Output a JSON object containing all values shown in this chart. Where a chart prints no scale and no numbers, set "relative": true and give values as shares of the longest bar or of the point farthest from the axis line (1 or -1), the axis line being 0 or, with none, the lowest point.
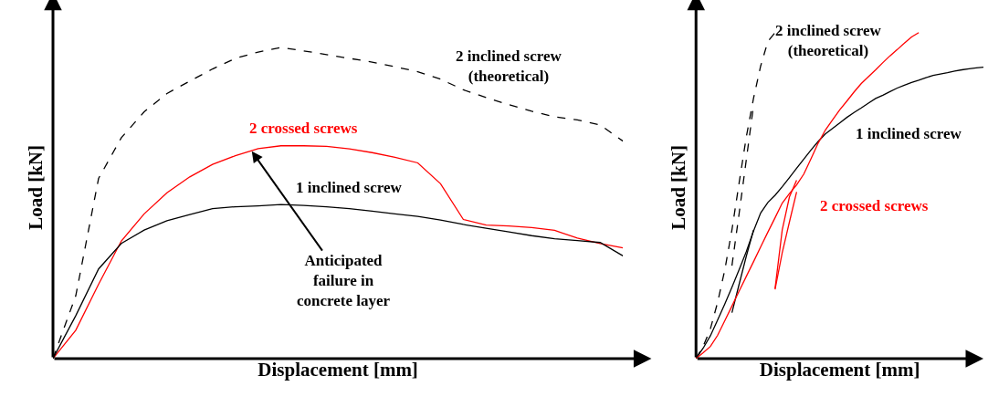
{
  "chart_data": [
    {
      "type": "line",
      "relative": true,
      "xlabel": "Displacement [mm]",
      "ylabel": "Load [kN]",
      "categories": [
        null,
        null,
        null,
        null,
        null,
        null,
        null,
        null,
        null,
        null,
        null,
        null,
        null,
        null,
        null,
        null,
        null,
        null,
        null,
        null,
        null,
        null,
        null,
        null,
        null,
        null
      ],
      "series": [
        {
          "name": "2 inclined screw\n(theoretical)",
          "color": "#000000",
          "line_style": "dashed",
          "values": [
            0,
            0.202,
            0.579,
            0.71,
            0.793,
            0.852,
            0.892,
            0.931,
            0.965,
            0.985,
            1.0,
            0.989,
            0.977,
            0.965,
            0.953,
            0.938,
            0.922,
            0.898,
            0.864,
            0.839,
            0.816,
            0.795,
            0.777,
            0.767,
            0.751,
            0.699
          ]
        },
        {
          "name": "2 crossed screws",
          "color": "#ff0000",
          "values": [
            0,
            0.091,
            0.239,
            0.378,
            0.465,
            0.533,
            0.584,
            0.624,
            0.652,
            0.675,
            0.684,
            0.684,
            0.682,
            0.674,
            0.662,
            0.647,
            0.629,
            0.562,
            0.447,
            0.429,
            0.426,
            0.421,
            0.412,
            0.387,
            0.37,
            0.356
          ]
        },
        {
          "name": "1 inclined screw",
          "color": "#000000",
          "values": [
            0,
            0.138,
            0.288,
            0.37,
            0.413,
            0.443,
            0.463,
            0.482,
            0.488,
            0.491,
            0.495,
            0.492,
            0.488,
            0.482,
            0.474,
            0.465,
            0.457,
            0.445,
            0.431,
            0.419,
            0.407,
            0.395,
            0.385,
            0.379,
            0.373,
            0.33
          ]
        }
      ],
      "annotations": [
        "Anticipated\nfailure in\nconcrete layer"
      ]
    },
    {
      "type": "line",
      "relative": true,
      "xlabel": "Displacement [mm]",
      "ylabel": "Load [kN]",
      "categories": [
        null,
        null,
        null,
        null,
        null,
        null,
        null,
        null,
        null,
        null,
        null,
        null,
        null,
        null,
        null,
        null,
        null,
        null,
        null,
        null,
        null,
        null,
        null,
        null,
        null,
        null,
        null,
        null,
        null,
        null,
        null,
        null,
        null,
        null,
        null,
        null,
        null,
        null,
        null,
        null,
        null
      ],
      "series": [
        {
          "name": "2 inclined screw\n(theoretical)",
          "color": "#000000",
          "line_style": "dashed",
          "values": [
            0,
            0.038,
            0.091,
            0.172,
            0.271,
            0.395,
            0.539,
            0.68,
            0.798,
            0.898,
            0.973,
            1.0,
            null,
            null,
            null,
            null,
            null,
            null,
            null,
            null,
            null,
            null,
            null,
            null,
            null,
            null,
            null,
            null,
            null,
            null,
            null,
            null,
            null,
            null,
            null,
            null,
            null,
            null,
            null,
            null,
            null
          ]
        },
        {
          "color": "#000000",
          "line_style": "dashed",
          "values": [
            null,
            null,
            null,
            null,
            null,
            0.285,
            0.445,
            0.61,
            0.776,
            null,
            null,
            null,
            null,
            null,
            null,
            null,
            null,
            null,
            null,
            null,
            null,
            null,
            null,
            null,
            null,
            null,
            null,
            null,
            null,
            null,
            null,
            null,
            null,
            null,
            null,
            null,
            null,
            null,
            null,
            null,
            null
          ]
        },
        {
          "name": "1 inclined screw",
          "color": "#000000",
          "values": [
            0,
            0.032,
            0.07,
            0.118,
            0.167,
            0.219,
            0.273,
            0.328,
            0.391,
            0.447,
            0.479,
            0.501,
            0.527,
            0.555,
            0.584,
            0.612,
            0.64,
            0.666,
            0.689,
            0.706,
            0.723,
            0.74,
            0.755,
            0.769,
            0.784,
            0.798,
            0.808,
            0.819,
            0.83,
            0.839,
            0.847,
            0.854,
            0.862,
            0.869,
            0.873,
            0.877,
            0.882,
            0.886,
            0.889,
            0.892,
            0.894
          ]
        },
        {
          "color": "#000000",
          "values": [
            null,
            null,
            null,
            null,
            null,
            0.141,
            0.228,
            0.314,
            0.394,
            null,
            null,
            null,
            null,
            null,
            null,
            null,
            null,
            null,
            null,
            null,
            null,
            null,
            null,
            null,
            null,
            null,
            null,
            null,
            null,
            null,
            null,
            null,
            null,
            null,
            null,
            null,
            null,
            null,
            null,
            null,
            null
          ]
        },
        {
          "name": "2 crossed screws",
          "color": "#ff0000",
          "values": [
            0,
            0.018,
            0.037,
            0.071,
            0.116,
            0.161,
            0.207,
            0.252,
            0.297,
            0.343,
            0.388,
            0.432,
            0.477,
            0.506,
            0.533,
            0.566,
            0.613,
            0.661,
            0.701,
            0.732,
            0.763,
            0.79,
            0.818,
            0.844,
            0.865,
            0.886,
            0.908,
            0.929,
            0.948,
            0.968,
            0.987,
            1.0,
            null,
            null,
            null,
            null,
            null,
            null,
            null,
            null,
            null
          ]
        },
        {
          "color": "#ff0000",
          "values": [
            null,
            null,
            null,
            null,
            null,
            null,
            null,
            null,
            null,
            null,
            null,
            0.212,
            0.325,
            0.419,
            0.511,
            null,
            null,
            null,
            null,
            null,
            null,
            null,
            null,
            null,
            null,
            null,
            null,
            null,
            null,
            null,
            null,
            null,
            null,
            null,
            null,
            null,
            null,
            null,
            null,
            null,
            null
          ]
        },
        {
          "color": "#ff0000",
          "values": [
            null,
            null,
            null,
            null,
            null,
            null,
            null,
            null,
            null,
            null,
            null,
            0.215,
            0.395,
            0.496,
            0.547,
            null,
            null,
            null,
            null,
            null,
            null,
            null,
            null,
            null,
            null,
            null,
            null,
            null,
            null,
            null,
            null,
            null,
            null,
            null,
            null,
            null,
            null,
            null,
            null,
            null,
            null
          ]
        }
      ]
    }
  ]
}
